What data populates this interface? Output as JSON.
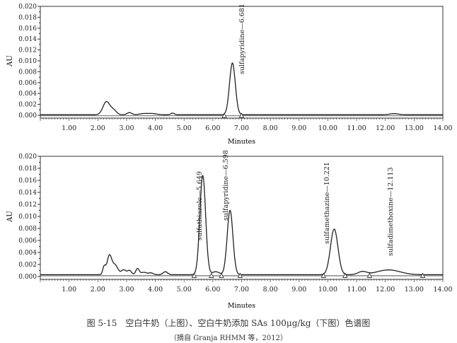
{
  "chart_data": [
    {
      "type": "line",
      "title": "",
      "xlabel": "Minutes",
      "ylabel": "AU",
      "xlim": [
        0,
        14
      ],
      "ylim": [
        0,
        0.02
      ],
      "xticks": [
        "1.00",
        "2.00",
        "3.00",
        "4.00",
        "5.00",
        "6.00",
        "7.00",
        "8.00",
        "9.00",
        "10.00",
        "11.00",
        "12.00",
        "13.00",
        "14.00"
      ],
      "yticks": [
        "0.000",
        "0.002",
        "0.004",
        "0.006",
        "0.008",
        "0.010",
        "0.012",
        "0.014",
        "0.016",
        "0.018",
        "0.020"
      ],
      "grid": false,
      "baseline": 0.0001,
      "peaks": [
        {
          "rt": 2.3,
          "height": 0.0024,
          "width": 0.12
        },
        {
          "rt": 2.55,
          "height": 0.0008,
          "width": 0.1
        },
        {
          "rt": 3.1,
          "height": 0.0004,
          "width": 0.08
        },
        {
          "rt": 3.6,
          "height": 0.0002,
          "width": 0.15
        },
        {
          "rt": 3.9,
          "height": 0.0002,
          "width": 0.15
        },
        {
          "rt": 4.6,
          "height": 0.0003,
          "width": 0.06
        },
        {
          "rt": 6.681,
          "height": 0.0095,
          "width": 0.1,
          "label": "sulfapyridine—6.681"
        },
        {
          "rt": 12.3,
          "height": 0.0002,
          "width": 0.15
        }
      ],
      "integration_markers": [
        6.4,
        7.0
      ]
    },
    {
      "type": "line",
      "title": "",
      "xlabel": "Minutes",
      "ylabel": "AU",
      "xlim": [
        0,
        14
      ],
      "ylim": [
        0,
        0.02
      ],
      "xticks": [
        "1.00",
        "2.00",
        "3.00",
        "4.00",
        "5.00",
        "6.00",
        "7.00",
        "8.00",
        "9.00",
        "10.00",
        "11.00",
        "12.00",
        "13.00",
        "14.00"
      ],
      "yticks": [
        "0.000",
        "0.002",
        "0.004",
        "0.006",
        "0.008",
        "0.010",
        "0.012",
        "0.014",
        "0.016",
        "0.018",
        "0.020"
      ],
      "grid": false,
      "baseline": 0.0003,
      "peaks": [
        {
          "rt": 2.22,
          "height": 0.0013,
          "width": 0.05
        },
        {
          "rt": 2.4,
          "height": 0.0031,
          "width": 0.08
        },
        {
          "rt": 2.6,
          "height": 0.0016,
          "width": 0.1
        },
        {
          "rt": 2.9,
          "height": 0.0008,
          "width": 0.08
        },
        {
          "rt": 3.1,
          "height": 0.0007,
          "width": 0.07
        },
        {
          "rt": 3.38,
          "height": 0.001,
          "width": 0.06
        },
        {
          "rt": 3.6,
          "height": 0.0004,
          "width": 0.1
        },
        {
          "rt": 3.85,
          "height": 0.0003,
          "width": 0.08
        },
        {
          "rt": 4.35,
          "height": 0.0005,
          "width": 0.08
        },
        {
          "rt": 5.649,
          "height": 0.0165,
          "width": 0.1,
          "label": "sulfathiazole—5.649"
        },
        {
          "rt": 6.1,
          "height": 0.0005,
          "width": 0.12
        },
        {
          "rt": 6.598,
          "height": 0.0107,
          "width": 0.1,
          "label": "sulfapyridine—6.598"
        },
        {
          "rt": 10.221,
          "height": 0.0076,
          "width": 0.13,
          "label": "sulfamethazine—10.221"
        },
        {
          "rt": 11.2,
          "height": 0.0005,
          "width": 0.15
        },
        {
          "rt": 12.113,
          "height": 0.0008,
          "width": 0.4,
          "label": "sulfadimethoxine—12.113"
        }
      ],
      "integration_markers": [
        5.35,
        5.95,
        6.3,
        6.95,
        9.85,
        10.6,
        11.45,
        13.3
      ]
    }
  ],
  "caption": {
    "title": "图 5-15　空白牛奶（上图）、空白牛奶添加 SAs 100μg/kg（下图）色谱图",
    "source": "（摘自 Granja RHMM 等，2012）"
  }
}
